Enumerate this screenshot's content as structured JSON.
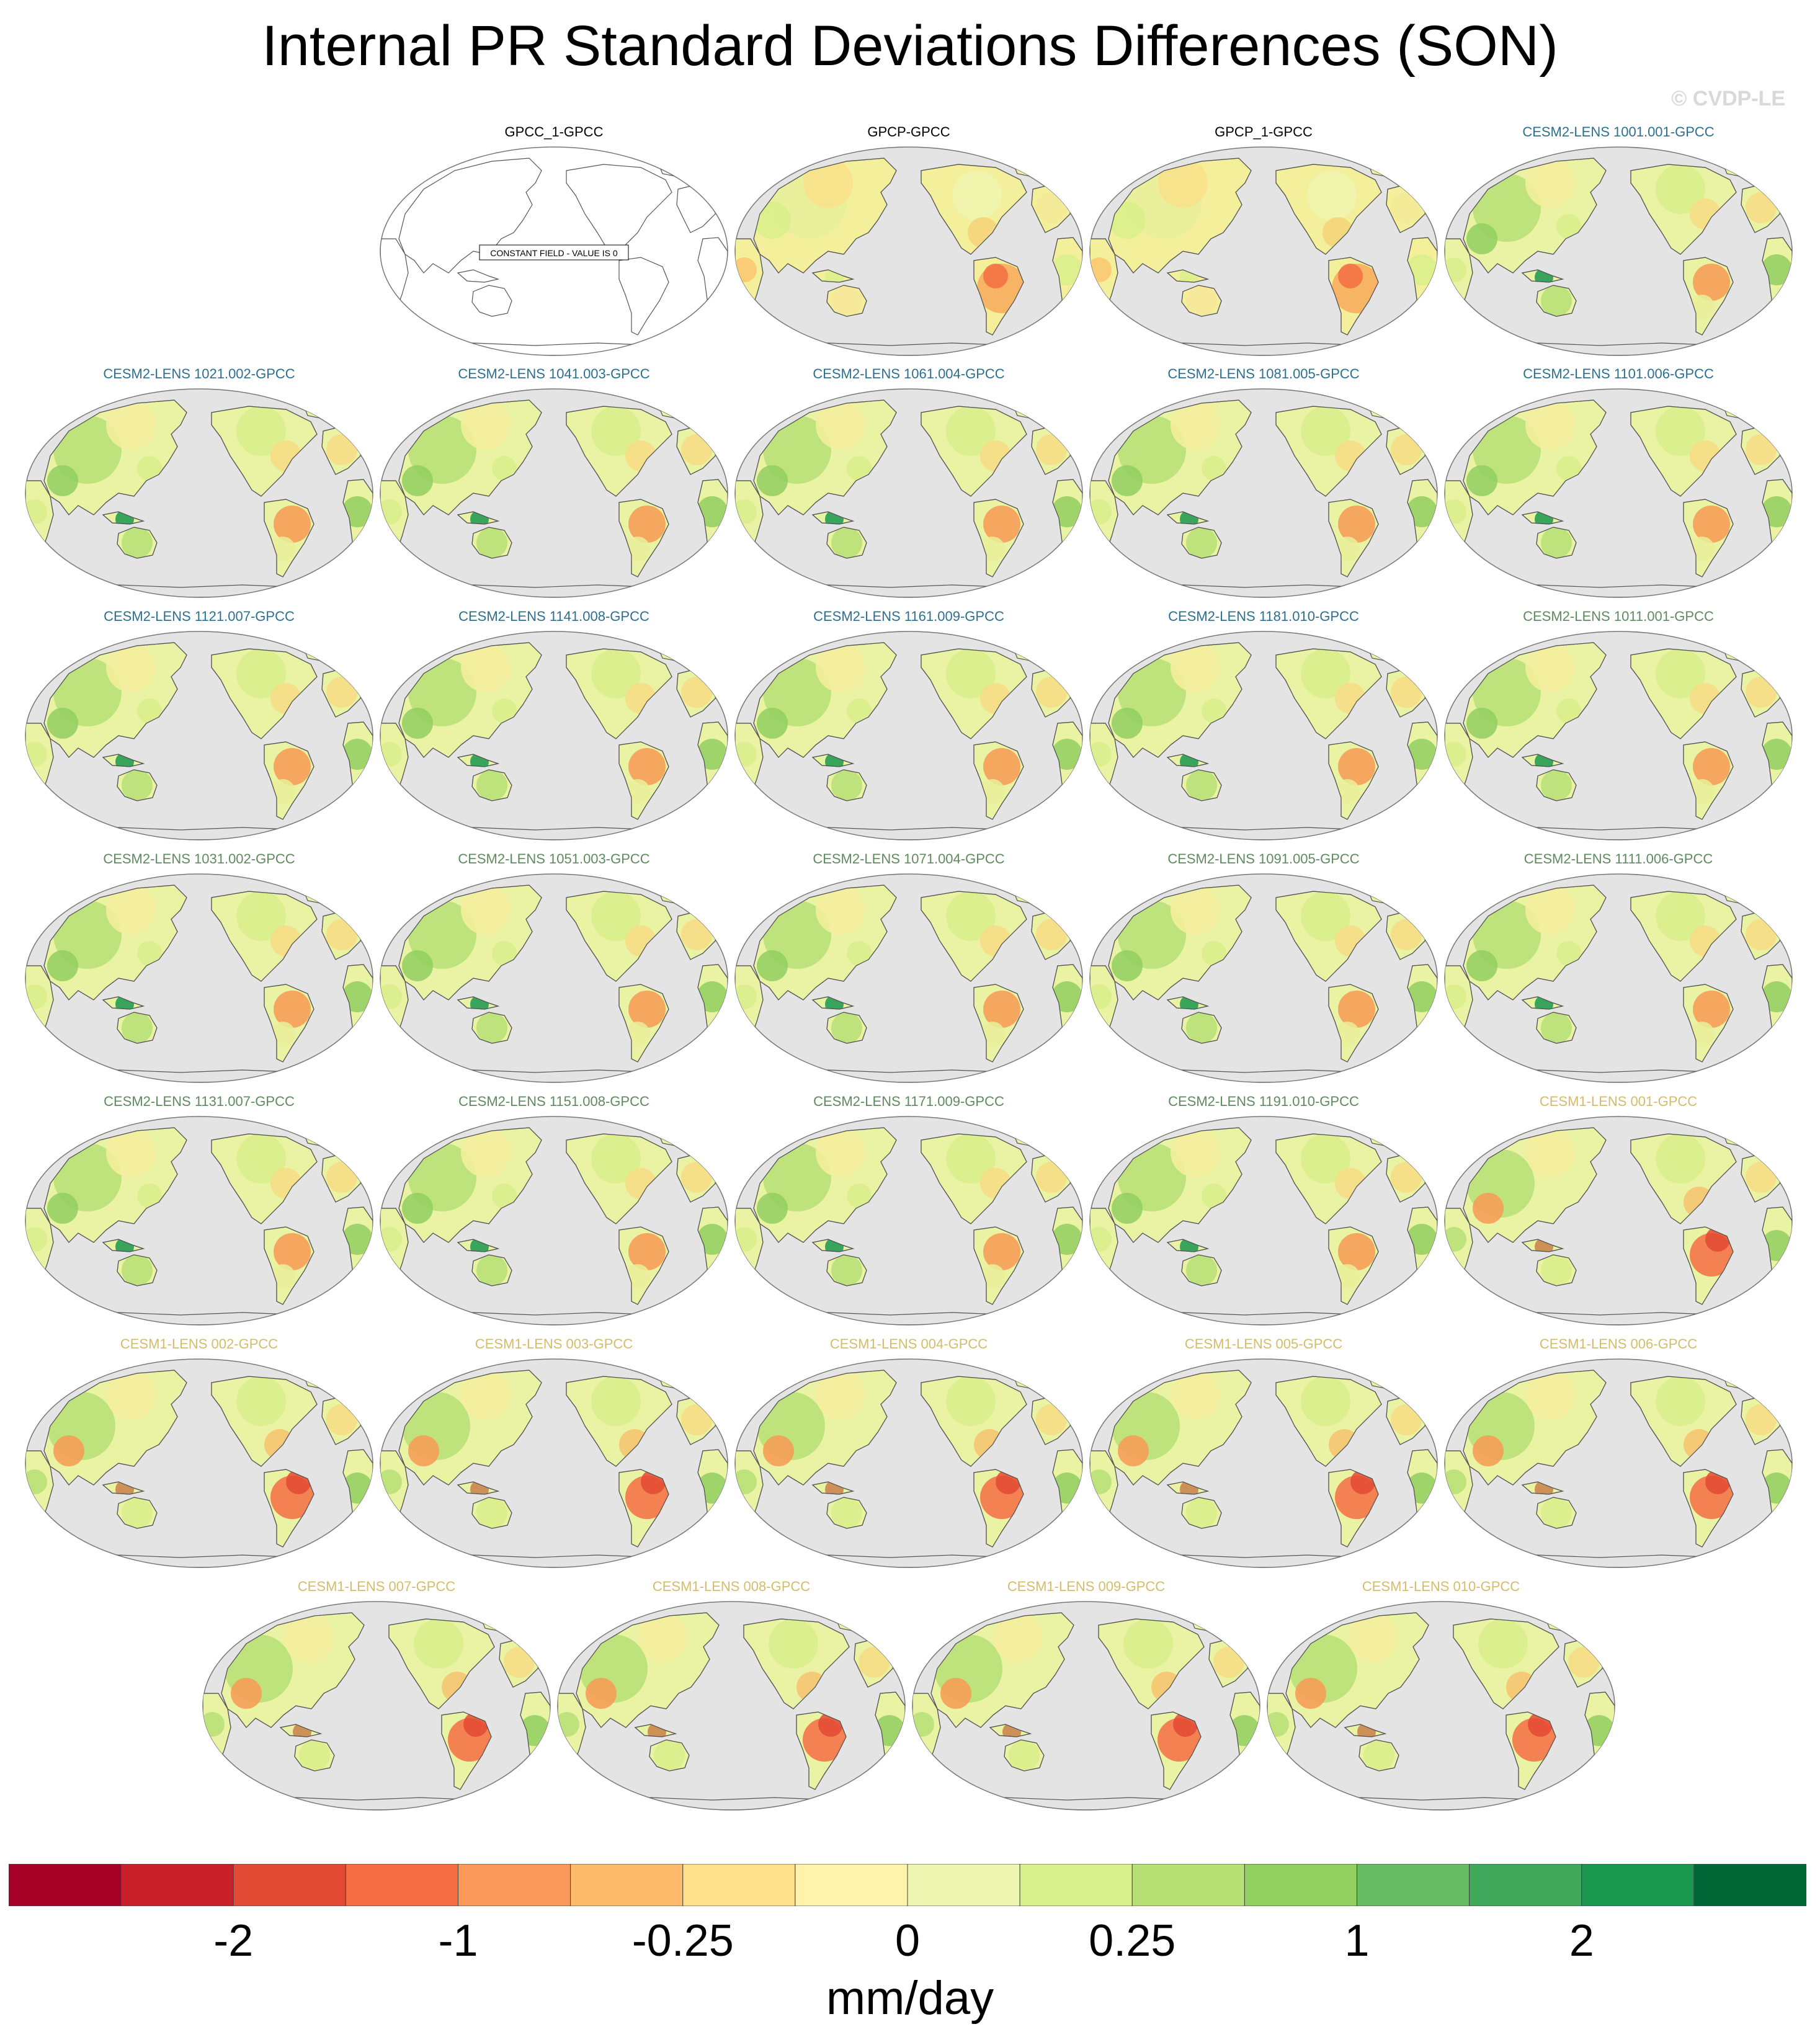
{
  "title": "Internal PR Standard Deviations Differences (SON)",
  "watermark": "© CVDP-LE",
  "constant_field_note": "CONSTANT FIELD - VALUE IS 0",
  "group_colors": {
    "observations": "#000000",
    "cesm2_1001": "#2c6f8f",
    "cesm2_1011": "#5f8a5f",
    "cesm1": "#d4bc6a"
  },
  "panels": [
    {
      "label": "GPCC_1-GPCC",
      "group": "observations",
      "constant": true
    },
    {
      "label": "GPCP-GPCC",
      "group": "observations",
      "pattern": "gpcp"
    },
    {
      "label": "GPCP_1-GPCC",
      "group": "observations",
      "pattern": "gpcp"
    },
    {
      "label": "CESM2-LENS 1001.001-GPCC",
      "group": "cesm2_1001",
      "pattern": "cesm2"
    },
    {
      "label": "CESM2-LENS 1021.002-GPCC",
      "group": "cesm2_1001",
      "pattern": "cesm2"
    },
    {
      "label": "CESM2-LENS 1041.003-GPCC",
      "group": "cesm2_1001",
      "pattern": "cesm2"
    },
    {
      "label": "CESM2-LENS 1061.004-GPCC",
      "group": "cesm2_1001",
      "pattern": "cesm2"
    },
    {
      "label": "CESM2-LENS 1081.005-GPCC",
      "group": "cesm2_1001",
      "pattern": "cesm2"
    },
    {
      "label": "CESM2-LENS 1101.006-GPCC",
      "group": "cesm2_1001",
      "pattern": "cesm2"
    },
    {
      "label": "CESM2-LENS 1121.007-GPCC",
      "group": "cesm2_1001",
      "pattern": "cesm2"
    },
    {
      "label": "CESM2-LENS 1141.008-GPCC",
      "group": "cesm2_1001",
      "pattern": "cesm2"
    },
    {
      "label": "CESM2-LENS 1161.009-GPCC",
      "group": "cesm2_1001",
      "pattern": "cesm2"
    },
    {
      "label": "CESM2-LENS 1181.010-GPCC",
      "group": "cesm2_1001",
      "pattern": "cesm2"
    },
    {
      "label": "CESM2-LENS 1011.001-GPCC",
      "group": "cesm2_1011",
      "pattern": "cesm2"
    },
    {
      "label": "CESM2-LENS 1031.002-GPCC",
      "group": "cesm2_1011",
      "pattern": "cesm2"
    },
    {
      "label": "CESM2-LENS 1051.003-GPCC",
      "group": "cesm2_1011",
      "pattern": "cesm2"
    },
    {
      "label": "CESM2-LENS 1071.004-GPCC",
      "group": "cesm2_1011",
      "pattern": "cesm2"
    },
    {
      "label": "CESM2-LENS 1091.005-GPCC",
      "group": "cesm2_1011",
      "pattern": "cesm2"
    },
    {
      "label": "CESM2-LENS 1111.006-GPCC",
      "group": "cesm2_1011",
      "pattern": "cesm2"
    },
    {
      "label": "CESM2-LENS 1131.007-GPCC",
      "group": "cesm2_1011",
      "pattern": "cesm2"
    },
    {
      "label": "CESM2-LENS 1151.008-GPCC",
      "group": "cesm2_1011",
      "pattern": "cesm2"
    },
    {
      "label": "CESM2-LENS 1171.009-GPCC",
      "group": "cesm2_1011",
      "pattern": "cesm2"
    },
    {
      "label": "CESM2-LENS 1191.010-GPCC",
      "group": "cesm2_1011",
      "pattern": "cesm2"
    },
    {
      "label": "CESM1-LENS 001-GPCC",
      "group": "cesm1",
      "pattern": "cesm1"
    },
    {
      "label": "CESM1-LENS 002-GPCC",
      "group": "cesm1",
      "pattern": "cesm1"
    },
    {
      "label": "CESM1-LENS 003-GPCC",
      "group": "cesm1",
      "pattern": "cesm1"
    },
    {
      "label": "CESM1-LENS 004-GPCC",
      "group": "cesm1",
      "pattern": "cesm1"
    },
    {
      "label": "CESM1-LENS 005-GPCC",
      "group": "cesm1",
      "pattern": "cesm1"
    },
    {
      "label": "CESM1-LENS 006-GPCC",
      "group": "cesm1",
      "pattern": "cesm1"
    },
    {
      "label": "CESM1-LENS 007-GPCC",
      "group": "cesm1",
      "pattern": "cesm1"
    },
    {
      "label": "CESM1-LENS 008-GPCC",
      "group": "cesm1",
      "pattern": "cesm1"
    },
    {
      "label": "CESM1-LENS 009-GPCC",
      "group": "cesm1",
      "pattern": "cesm1"
    },
    {
      "label": "CESM1-LENS 010-GPCC",
      "group": "cesm1",
      "pattern": "cesm1"
    }
  ],
  "colorbar": {
    "colors": [
      "#a50026",
      "#c8202a",
      "#e34a33",
      "#f46d43",
      "#f99858",
      "#fdbb6c",
      "#fee08b",
      "#fff3ac",
      "#eef5b0",
      "#d9ef8b",
      "#b7e075",
      "#91cf60",
      "#66bd63",
      "#3fa85a",
      "#1a9850",
      "#006837"
    ],
    "labels": [
      "-2",
      "-1",
      "-0.25",
      "0",
      "0.25",
      "1",
      "2"
    ],
    "label_boundaries": [
      2,
      4,
      6,
      8,
      10,
      12,
      14
    ],
    "units": "mm/day"
  }
}
